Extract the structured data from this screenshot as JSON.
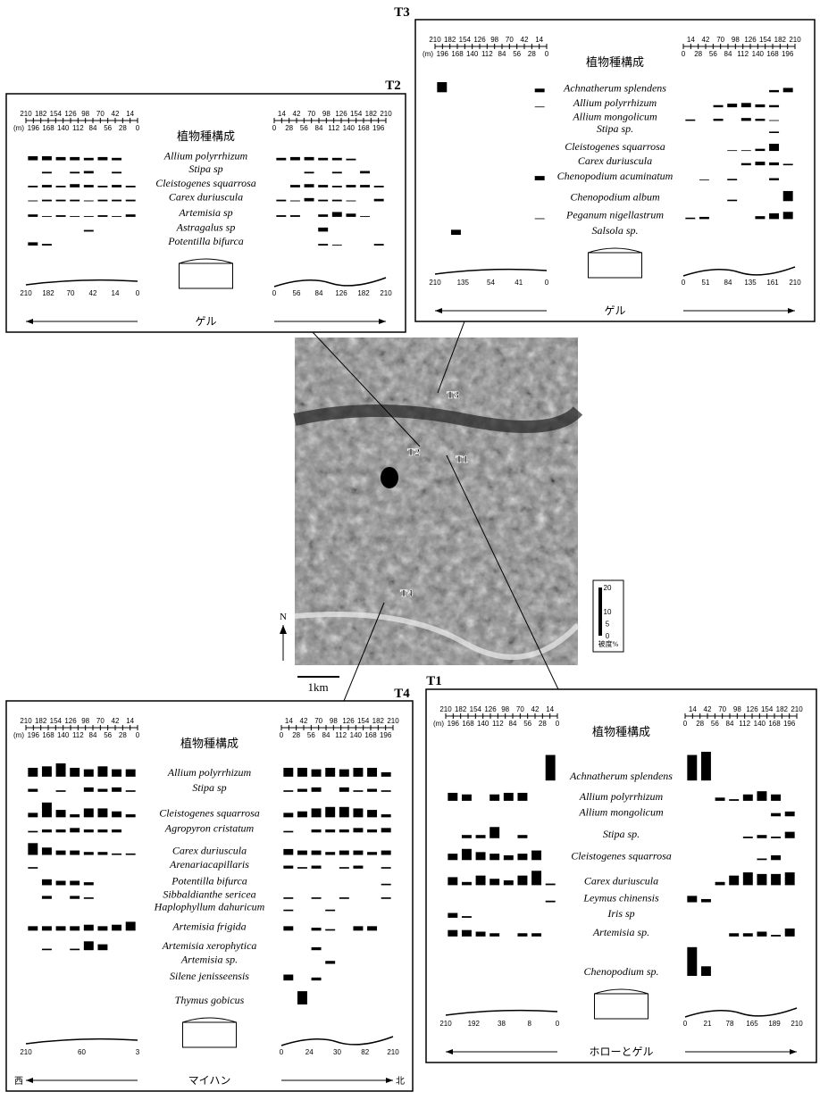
{
  "panels": [
    {
      "label": "T2",
      "units": "(m)",
      "heading": "植物種構成",
      "left_ticks_top": [
        210,
        182,
        154,
        126,
        98,
        70,
        42,
        14
      ],
      "left_ticks_bottom": [
        196,
        168,
        140,
        112,
        84,
        56,
        28,
        0
      ],
      "right_ticks_top": [
        14,
        42,
        70,
        98,
        126,
        154,
        182,
        210
      ],
      "right_ticks_bottom": [
        0,
        28,
        56,
        84,
        112,
        140,
        168,
        196
      ],
      "species": [
        {
          "name": "Allium polyrrhizum",
          "left": [
            5,
            5,
            4,
            4,
            3,
            4,
            3,
            0
          ],
          "right": [
            3,
            4,
            4,
            3,
            3,
            2,
            0,
            0
          ]
        },
        {
          "name": "Stipa sp",
          "left": [
            0,
            2,
            0,
            2,
            3,
            0,
            2,
            0
          ],
          "right": [
            0,
            0,
            2,
            0,
            2,
            0,
            3,
            0
          ]
        },
        {
          "name": "Cleistogenes squarrosa",
          "left": [
            2,
            3,
            2,
            4,
            3,
            2,
            3,
            2
          ],
          "right": [
            0,
            3,
            4,
            3,
            2,
            3,
            3,
            2
          ]
        },
        {
          "name": "Carex duriuscula",
          "left": [
            1,
            2,
            2,
            2,
            1,
            2,
            2,
            2
          ],
          "right": [
            2,
            1,
            4,
            2,
            2,
            1,
            0,
            3
          ]
        },
        {
          "name": "Artemisia sp",
          "left": [
            3,
            1,
            2,
            1,
            1,
            2,
            1,
            3
          ],
          "right": [
            2,
            2,
            0,
            3,
            6,
            4,
            1,
            0
          ]
        },
        {
          "name": "Astragalus sp",
          "left": [
            0,
            0,
            0,
            0,
            2,
            0,
            0,
            0
          ],
          "right": [
            0,
            0,
            0,
            5,
            0,
            0,
            0,
            0
          ]
        },
        {
          "name": "Potentilla bifurca",
          "left": [
            4,
            2,
            0,
            0,
            0,
            0,
            0,
            0
          ],
          "right": [
            0,
            0,
            0,
            2,
            1,
            0,
            0,
            2
          ]
        }
      ],
      "structure": "ゲル",
      "profile_left": [
        "210",
        "182",
        "70",
        "42",
        "14",
        "0"
      ],
      "profile_right": [
        "0",
        "56",
        "84",
        "126",
        "182",
        "210"
      ]
    },
    {
      "label": "T3",
      "units": "(m)",
      "heading": "植物種構成",
      "left_ticks_top": [
        210,
        182,
        154,
        126,
        98,
        70,
        42,
        14
      ],
      "left_ticks_bottom": [
        196,
        168,
        140,
        112,
        84,
        56,
        28,
        0
      ],
      "right_ticks_top": [
        14,
        42,
        70,
        98,
        126,
        154,
        182,
        210
      ],
      "right_ticks_bottom": [
        0,
        28,
        56,
        84,
        112,
        140,
        168,
        196
      ],
      "species": [
        {
          "name": "Achnatherum splendens",
          "left": [
            14,
            0,
            0,
            0,
            0,
            0,
            0,
            5
          ],
          "right": [
            0,
            0,
            0,
            0,
            0,
            0,
            3,
            6
          ]
        },
        {
          "name": "Allium polyrrhizum",
          "left": [
            0,
            0,
            0,
            0,
            0,
            0,
            0,
            1
          ],
          "right": [
            0,
            0,
            3,
            5,
            6,
            4,
            3,
            0
          ]
        },
        {
          "name": "Allium mongolicum",
          "left": [
            0,
            0,
            0,
            0,
            0,
            0,
            0,
            0
          ],
          "right": [
            2,
            0,
            3,
            0,
            4,
            3,
            1,
            0
          ]
        },
        {
          "name": "Stipa sp.",
          "left": [
            0,
            0,
            0,
            0,
            0,
            0,
            0,
            0
          ],
          "right": [
            0,
            0,
            0,
            0,
            0,
            0,
            2,
            0
          ]
        },
        {
          "name": "Cleistogenes squarrosa",
          "left": [
            0,
            0,
            0,
            0,
            0,
            0,
            0,
            0
          ],
          "right": [
            0,
            0,
            0,
            1,
            1,
            3,
            10,
            0
          ]
        },
        {
          "name": "Carex duriuscula",
          "left": [
            0,
            0,
            0,
            0,
            0,
            0,
            0,
            0
          ],
          "right": [
            0,
            0,
            0,
            0,
            3,
            5,
            4,
            2
          ]
        },
        {
          "name": "Chenopodium acuminatum",
          "left": [
            0,
            0,
            0,
            0,
            0,
            0,
            0,
            6
          ],
          "right": [
            0,
            1,
            0,
            2,
            0,
            0,
            3,
            0
          ]
        },
        {
          "name": "Chenopodium album",
          "left": [
            0,
            0,
            0,
            0,
            0,
            0,
            0,
            0
          ],
          "right": [
            0,
            0,
            0,
            2,
            0,
            0,
            0,
            14
          ]
        },
        {
          "name": "Peganum nigellastrum",
          "left": [
            0,
            0,
            0,
            0,
            0,
            0,
            0,
            1
          ],
          "right": [
            2,
            3,
            0,
            0,
            0,
            4,
            8,
            10
          ]
        },
        {
          "name": "Salsola sp.",
          "left": [
            0,
            7,
            0,
            0,
            0,
            0,
            0,
            0
          ],
          "right": [
            0,
            0,
            0,
            0,
            0,
            0,
            0,
            0
          ]
        }
      ],
      "structure": "ゲル",
      "profile_left": [
        "210",
        "135",
        "54",
        "41",
        "0"
      ],
      "profile_right": [
        "0",
        "51",
        "84",
        "135",
        "161",
        "210"
      ]
    },
    {
      "label": "T4",
      "units": "(m)",
      "heading": "植物種構成",
      "left_ticks_top": [
        210,
        182,
        154,
        126,
        98,
        70,
        42,
        14
      ],
      "left_ticks_bottom": [
        196,
        168,
        140,
        112,
        84,
        56,
        28,
        0
      ],
      "right_ticks_top": [
        14,
        42,
        70,
        98,
        126,
        154,
        182,
        210
      ],
      "right_ticks_bottom": [
        0,
        28,
        56,
        84,
        112,
        140,
        168,
        196
      ],
      "species": [
        {
          "name": "Allium polyrrhizum",
          "left": [
            6,
            7,
            9,
            6,
            5,
            7,
            5,
            5
          ],
          "right": [
            6,
            6,
            5,
            6,
            5,
            6,
            6,
            3
          ]
        },
        {
          "name": "Stipa sp",
          "left": [
            2,
            0,
            1,
            0,
            3,
            2,
            3,
            1
          ],
          "right": [
            1,
            2,
            3,
            0,
            3,
            1,
            2,
            1
          ]
        },
        {
          "name": "Cleistogenes squarrosa",
          "left": [
            3,
            10,
            5,
            2,
            6,
            6,
            4,
            2
          ],
          "right": [
            3,
            4,
            6,
            7,
            7,
            6,
            5,
            2
          ]
        },
        {
          "name": "Agropyron cristatum",
          "left": [
            1,
            2,
            2,
            3,
            2,
            2,
            2,
            0
          ],
          "right": [
            1,
            0,
            2,
            2,
            2,
            3,
            2,
            3
          ]
        },
        {
          "name": "Carex duriuscula",
          "left": [
            8,
            5,
            3,
            3,
            2,
            2,
            1,
            1
          ],
          "right": [
            4,
            3,
            3,
            2,
            3,
            3,
            2,
            3
          ]
        },
        {
          "name": "Arenariacapillaris",
          "left": [
            1,
            0,
            0,
            0,
            0,
            0,
            0,
            0
          ],
          "right": [
            2,
            1,
            2,
            0,
            1,
            2,
            0,
            1
          ]
        },
        {
          "name": "Potentilla bifurca",
          "left": [
            0,
            4,
            3,
            3,
            2,
            0,
            0,
            0
          ],
          "right": [
            0,
            0,
            0,
            0,
            0,
            0,
            0,
            1
          ]
        },
        {
          "name": "Sibbaldianthe sericea",
          "left": [
            0,
            2,
            0,
            2,
            1,
            0,
            0,
            0
          ],
          "right": [
            1,
            0,
            1,
            0,
            1,
            0,
            0,
            1
          ]
        },
        {
          "name": "Haplophyllum dahuricum",
          "left": [
            0,
            0,
            0,
            0,
            0,
            0,
            0,
            0
          ],
          "right": [
            1,
            0,
            0,
            1,
            0,
            0,
            0,
            0
          ]
        },
        {
          "name": "Artemisia frigida",
          "left": [
            3,
            3,
            3,
            3,
            4,
            3,
            4,
            6
          ],
          "right": [
            3,
            0,
            2,
            1,
            0,
            3,
            3,
            0
          ]
        },
        {
          "name": "Artemisia xerophytica",
          "left": [
            0,
            1,
            0,
            1,
            6,
            4,
            0,
            0
          ],
          "right": [
            0,
            0,
            2,
            0,
            0,
            0,
            0,
            0
          ]
        },
        {
          "name": "Artemisia sp.",
          "left": [
            0,
            0,
            0,
            0,
            0,
            0,
            0,
            0
          ],
          "right": [
            0,
            0,
            0,
            2,
            0,
            0,
            0,
            0
          ]
        },
        {
          "name": "Silene jenisseensis",
          "left": [
            0,
            0,
            0,
            0,
            0,
            0,
            0,
            0
          ],
          "right": [
            4,
            0,
            2,
            0,
            0,
            0,
            0,
            0
          ]
        },
        {
          "name": "Thymus gobicus",
          "left": [
            0,
            0,
            0,
            0,
            0,
            0,
            0,
            0
          ],
          "right": [
            0,
            9,
            0,
            0,
            0,
            0,
            0,
            0
          ]
        }
      ],
      "structure": "マイハン",
      "profile_left": [
        "210",
        "60",
        "3"
      ],
      "profile_right": [
        "0",
        "24",
        "30",
        "82",
        "210"
      ],
      "direction_left": "西",
      "direction_right": "北"
    },
    {
      "label": "T1",
      "units": "(m)",
      "heading": "植物種構成",
      "left_ticks_top": [
        210,
        182,
        154,
        126,
        98,
        70,
        42,
        14
      ],
      "left_ticks_bottom": [
        196,
        168,
        140,
        112,
        84,
        56,
        28,
        0
      ],
      "right_ticks_top": [
        14,
        42,
        70,
        98,
        126,
        154,
        182,
        210
      ],
      "right_ticks_bottom": [
        0,
        28,
        56,
        84,
        112,
        140,
        168,
        196
      ],
      "species": [
        {
          "name": "Achnatherum splendens",
          "left": [
            0,
            0,
            0,
            0,
            0,
            0,
            0,
            16
          ],
          "right": [
            16,
            18,
            0,
            0,
            0,
            0,
            0,
            0
          ]
        },
        {
          "name": "Allium polyrrhizum",
          "left": [
            5,
            4,
            0,
            4,
            5,
            5,
            0,
            0
          ],
          "right": [
            0,
            0,
            2,
            1,
            4,
            6,
            4,
            0
          ]
        },
        {
          "name": "Allium mongolicum",
          "left": [
            0,
            0,
            0,
            0,
            0,
            0,
            0,
            0
          ],
          "right": [
            0,
            0,
            0,
            0,
            0,
            0,
            2,
            3
          ]
        },
        {
          "name": "Stipa sp.",
          "left": [
            0,
            2,
            2,
            7,
            0,
            2,
            0,
            0
          ],
          "right": [
            0,
            0,
            0,
            0,
            1,
            2,
            1,
            4
          ]
        },
        {
          "name": "Cleistogenes squarrosa",
          "left": [
            4,
            7,
            5,
            4,
            3,
            4,
            6,
            0
          ],
          "right": [
            0,
            0,
            0,
            0,
            0,
            1,
            3,
            0
          ]
        },
        {
          "name": "Carex duriuscula",
          "left": [
            5,
            2,
            6,
            4,
            3,
            6,
            9,
            1
          ],
          "right": [
            0,
            0,
            2,
            6,
            8,
            7,
            7,
            8
          ]
        },
        {
          "name": "Leymus chinensis",
          "left": [
            0,
            0,
            0,
            0,
            0,
            0,
            0,
            1
          ],
          "right": [
            4,
            2,
            0,
            0,
            0,
            0,
            0,
            0
          ]
        },
        {
          "name": "Iris sp",
          "left": [
            3,
            1,
            0,
            0,
            0,
            0,
            0,
            0
          ],
          "right": [
            0,
            0,
            0,
            0,
            0,
            0,
            0,
            0
          ]
        },
        {
          "name": "Artemisia sp.",
          "left": [
            4,
            4,
            3,
            2,
            0,
            2,
            2,
            0
          ],
          "right": [
            0,
            0,
            0,
            2,
            2,
            3,
            1,
            5
          ]
        },
        {
          "name": "Chenopodium sp.",
          "left": [
            0,
            0,
            0,
            0,
            0,
            0,
            0,
            0
          ],
          "right": [
            18,
            6,
            0,
            0,
            0,
            0,
            0,
            0
          ]
        }
      ],
      "structure": "ホローとゲル",
      "profile_left": [
        "210",
        "192",
        "38",
        "8",
        "0"
      ],
      "profile_right": [
        "0",
        "21",
        "78",
        "165",
        "189",
        "210"
      ]
    }
  ],
  "map": {
    "labels": [
      "T3",
      "T2",
      "T1",
      "T4"
    ],
    "scale": "1km",
    "north": "N"
  },
  "legend": {
    "ticks": [
      20,
      10,
      5,
      0
    ],
    "label": "被度%"
  }
}
